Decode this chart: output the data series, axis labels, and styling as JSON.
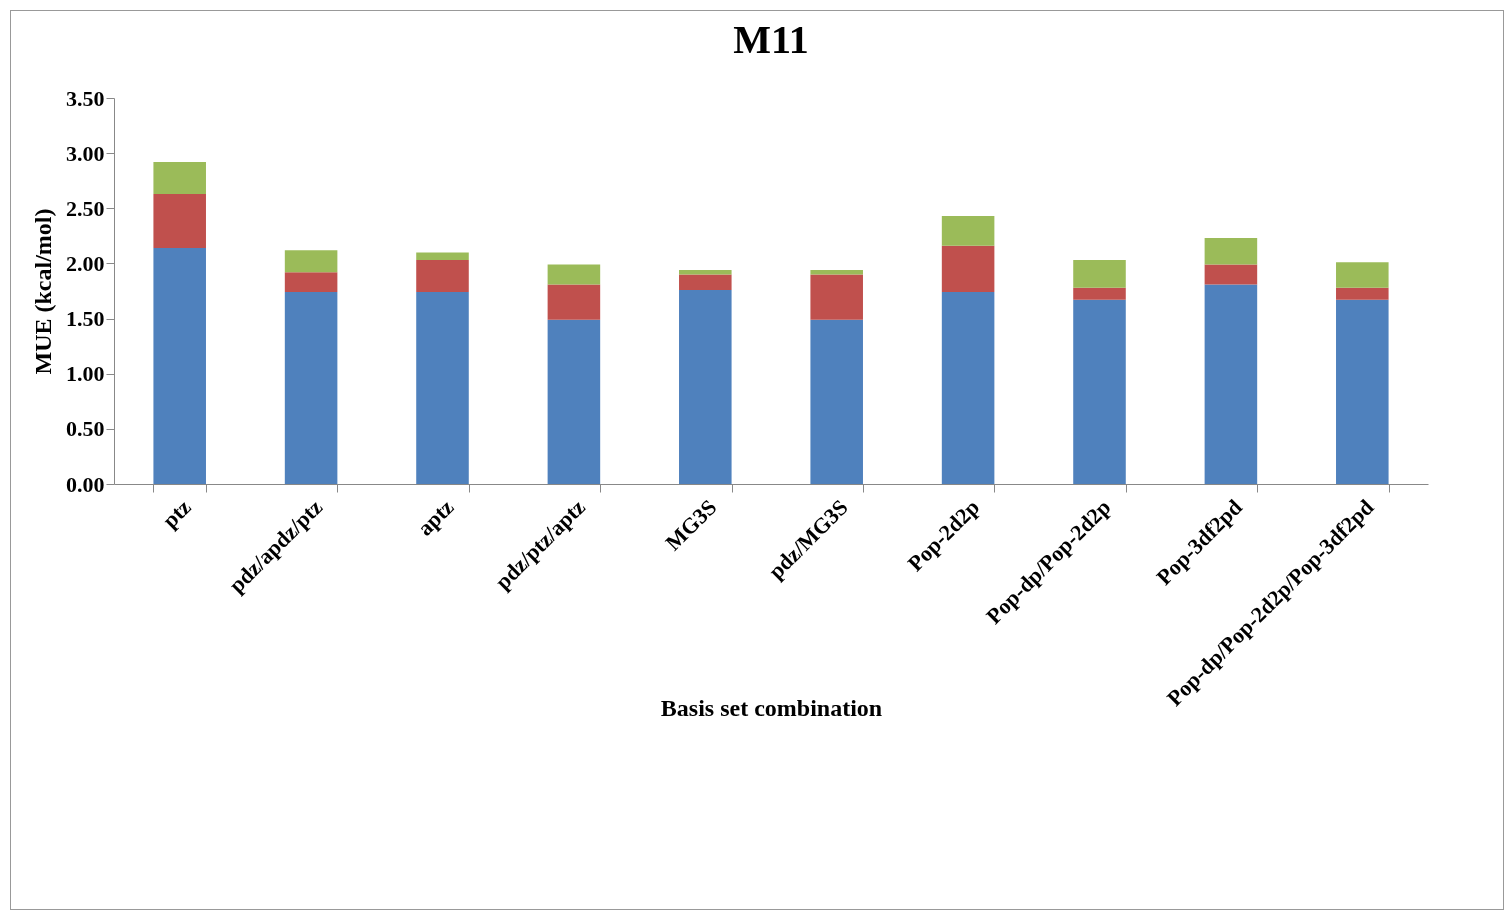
{
  "chart_data": {
    "type": "bar",
    "title": "M11",
    "xlabel": "Basis set combination",
    "ylabel": "MUE (kcal/mol)",
    "stacked": true,
    "grid": false,
    "legend": false,
    "categories": [
      "ptz",
      "pdz/apdz/ptz",
      "aptz",
      "pdz/ptz/aptz",
      "MG3S",
      "pdz/MG3S",
      "Pop-2d2p",
      "Pop-dp/Pop-2d2p",
      "Pop-3df2pd",
      "Pop-dp/Pop-2d2p/Pop-3df2pd"
    ],
    "series": [
      {
        "color": "#4f81bd",
        "values": [
          2.14,
          1.74,
          1.74,
          1.49,
          1.76,
          1.49,
          1.74,
          1.67,
          1.81,
          1.67
        ]
      },
      {
        "color": "#c0504d",
        "values": [
          0.49,
          0.18,
          0.29,
          0.32,
          0.14,
          0.41,
          0.42,
          0.11,
          0.18,
          0.11
        ]
      },
      {
        "color": "#9bbb59",
        "values": [
          0.29,
          0.2,
          0.07,
          0.18,
          0.04,
          0.04,
          0.27,
          0.25,
          0.24,
          0.23
        ]
      }
    ],
    "ylim": [
      0,
      3.5
    ],
    "yticks": [
      {
        "value": 0,
        "label": "0.00"
      },
      {
        "value": 0.5,
        "label": "0.50"
      },
      {
        "value": 1,
        "label": "1.00"
      },
      {
        "value": 1.5,
        "label": "1.50"
      },
      {
        "value": 2,
        "label": "2.00"
      },
      {
        "value": 2.5,
        "label": "2.50"
      },
      {
        "value": 3,
        "label": "3.00"
      },
      {
        "value": 3.5,
        "label": "3.50"
      }
    ]
  }
}
